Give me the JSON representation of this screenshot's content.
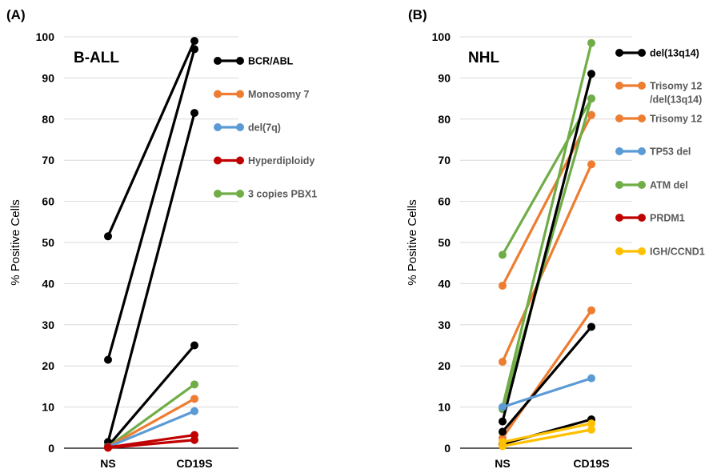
{
  "colors": {
    "black": "#000000",
    "orange": "#ED7D31",
    "blue": "#5B9BD5",
    "red": "#C00000",
    "green": "#70AD47",
    "yellow": "#FFC000",
    "grid": "#d9d9d9"
  },
  "chart_data": [
    {
      "type": "line",
      "panel_label": "(A)",
      "title": "B-ALL",
      "ylabel": "% Positive Cells",
      "categories": [
        "NS",
        "CD19S"
      ],
      "ylim": [
        0,
        100
      ],
      "yticks": [
        0,
        10,
        20,
        30,
        40,
        50,
        60,
        70,
        80,
        90,
        100
      ],
      "grid": true,
      "legend": [
        {
          "label": "BCR/ABL",
          "color": "#000000"
        },
        {
          "label": "Monosomy 7",
          "color": "#ED7D31"
        },
        {
          "label": "del(7q)",
          "color": "#5B9BD5"
        },
        {
          "label": "Hyperdiploidy",
          "color": "#C00000"
        },
        {
          "label": "3 copies PBX1",
          "color": "#70AD47"
        }
      ],
      "series": [
        {
          "color": "#000000",
          "values": [
            51.5,
            99
          ]
        },
        {
          "color": "#000000",
          "values": [
            21.5,
            97
          ]
        },
        {
          "color": "#000000",
          "values": [
            1.5,
            81.5
          ]
        },
        {
          "color": "#000000",
          "values": [
            0.5,
            25
          ]
        },
        {
          "color": "#70AD47",
          "values": [
            0.3,
            15.5
          ]
        },
        {
          "color": "#ED7D31",
          "values": [
            0.3,
            12
          ]
        },
        {
          "color": "#5B9BD5",
          "values": [
            0.3,
            9
          ]
        },
        {
          "color": "#C00000",
          "values": [
            0.2,
            3.2
          ]
        },
        {
          "color": "#C00000",
          "values": [
            0.1,
            2
          ]
        }
      ]
    },
    {
      "type": "line",
      "panel_label": "(B)",
      "title": "NHL",
      "ylabel": "% Positive Cells",
      "categories": [
        "NS",
        "CD19S"
      ],
      "ylim": [
        0,
        100
      ],
      "yticks": [
        0,
        10,
        20,
        30,
        40,
        50,
        60,
        70,
        80,
        90,
        100
      ],
      "grid": true,
      "legend": [
        {
          "label": "del(13q14)",
          "color": "#000000"
        },
        {
          "label": "Trisomy 12\n/del(13q14)",
          "color": "#ED7D31"
        },
        {
          "label": "Trisomy 12",
          "color": "#ED7D31"
        },
        {
          "label": "TP53 del",
          "color": "#5B9BD5"
        },
        {
          "label": "ATM del",
          "color": "#70AD47"
        },
        {
          "label": "PRDM1",
          "color": "#C00000"
        },
        {
          "label": "IGH/CCND1",
          "color": "#FFC000"
        }
      ],
      "series": [
        {
          "color": "#ED7D31",
          "values": [
            39.5,
            81
          ]
        },
        {
          "color": "#ED7D31",
          "values": [
            21,
            69
          ]
        },
        {
          "color": "#ED7D31",
          "values": [
            2.5,
            33.5
          ]
        },
        {
          "color": "#70AD47",
          "values": [
            47,
            85
          ]
        },
        {
          "color": "#70AD47",
          "values": [
            10,
            98.5
          ]
        },
        {
          "color": "#70AD47",
          "values": [
            9.5,
            85
          ]
        },
        {
          "color": "#000000",
          "values": [
            6.5,
            91
          ]
        },
        {
          "color": "#000000",
          "values": [
            4,
            29.5
          ]
        },
        {
          "color": "#000000",
          "values": [
            1,
            7
          ]
        },
        {
          "color": "#5B9BD5",
          "values": [
            10,
            17
          ]
        },
        {
          "color": "#FFC000",
          "values": [
            1.5,
            6
          ]
        },
        {
          "color": "#FFC000",
          "values": [
            0.5,
            4.5
          ]
        }
      ]
    }
  ]
}
